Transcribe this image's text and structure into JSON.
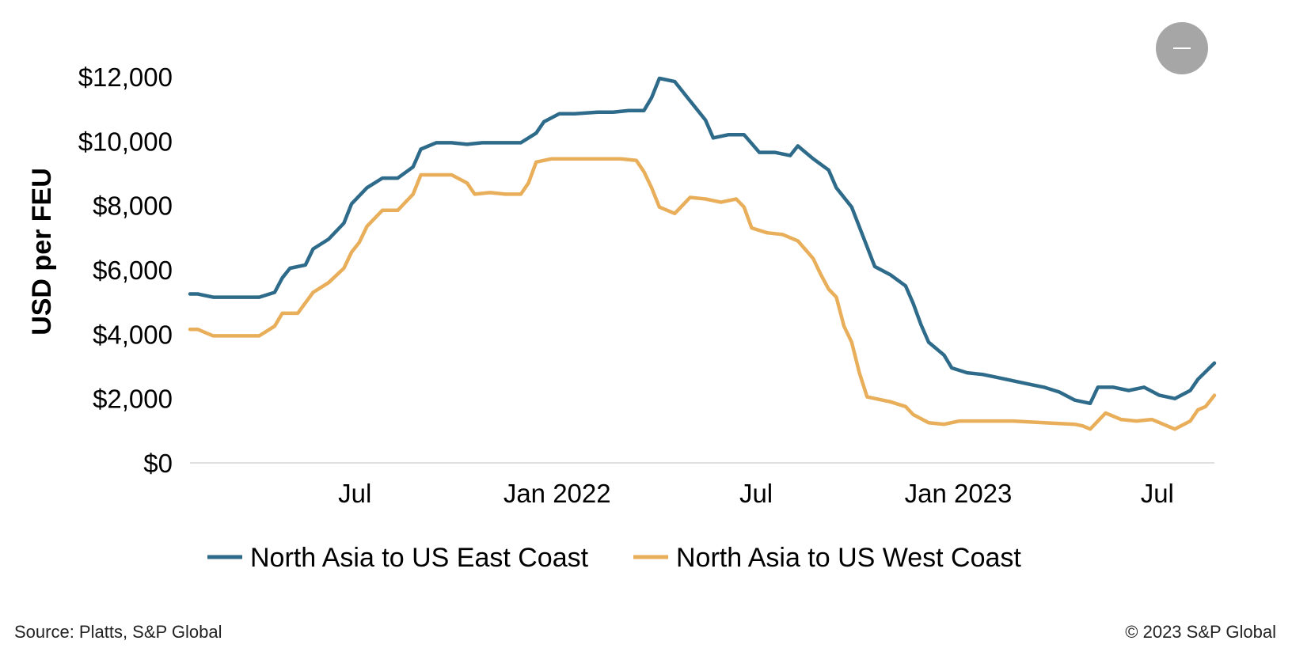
{
  "source_text": "Source: Platts, S&P Global",
  "copyright_text": "© 2023 S&P Global",
  "chart_data": {
    "type": "line",
    "xlabel": "",
    "ylabel": "USD per FEU",
    "ylim": [
      0,
      12000
    ],
    "yticks": [
      {
        "value": 0,
        "label": "$0"
      },
      {
        "value": 2000,
        "label": "$2,000"
      },
      {
        "value": 4000,
        "label": "$4,000"
      },
      {
        "value": 6000,
        "label": "$6,000"
      },
      {
        "value": 8000,
        "label": "$8,000"
      },
      {
        "value": 10000,
        "label": "$10,000"
      },
      {
        "value": 12000,
        "label": "$12,000"
      }
    ],
    "xlim": [
      "2021-02-01",
      "2023-08-22"
    ],
    "xticks": [
      {
        "date": "2021-07-01",
        "label": "Jul"
      },
      {
        "date": "2022-01-01",
        "label": "Jan 2022"
      },
      {
        "date": "2022-07-01",
        "label": "Jul"
      },
      {
        "date": "2023-01-01",
        "label": "Jan 2023"
      },
      {
        "date": "2023-07-01",
        "label": "Jul"
      }
    ],
    "grid": false,
    "legend_position": "bottom",
    "series": [
      {
        "name": "North Asia to US East Coast",
        "color": "#2e6b8a",
        "points": [
          [
            "2021-02-01",
            5250
          ],
          [
            "2021-02-08",
            5250
          ],
          [
            "2021-02-22",
            5150
          ],
          [
            "2021-03-15",
            5150
          ],
          [
            "2021-04-05",
            5150
          ],
          [
            "2021-04-19",
            5300
          ],
          [
            "2021-04-26",
            5750
          ],
          [
            "2021-05-03",
            6050
          ],
          [
            "2021-05-17",
            6150
          ],
          [
            "2021-05-24",
            6650
          ],
          [
            "2021-06-07",
            6950
          ],
          [
            "2021-06-21",
            7450
          ],
          [
            "2021-06-28",
            8050
          ],
          [
            "2021-07-12",
            8550
          ],
          [
            "2021-07-26",
            8850
          ],
          [
            "2021-08-09",
            8850
          ],
          [
            "2021-08-23",
            9200
          ],
          [
            "2021-08-30",
            9750
          ],
          [
            "2021-09-13",
            9950
          ],
          [
            "2021-09-27",
            9950
          ],
          [
            "2021-10-11",
            9900
          ],
          [
            "2021-10-25",
            9950
          ],
          [
            "2021-11-08",
            9950
          ],
          [
            "2021-11-29",
            9950
          ],
          [
            "2021-12-13",
            10250
          ],
          [
            "2021-12-20",
            10600
          ],
          [
            "2022-01-03",
            10850
          ],
          [
            "2022-01-17",
            10850
          ],
          [
            "2022-02-07",
            10900
          ],
          [
            "2022-02-21",
            10900
          ],
          [
            "2022-03-07",
            10950
          ],
          [
            "2022-03-21",
            10950
          ],
          [
            "2022-03-28",
            11350
          ],
          [
            "2022-04-04",
            11950
          ],
          [
            "2022-04-18",
            11850
          ],
          [
            "2022-05-02",
            11250
          ],
          [
            "2022-05-16",
            10650
          ],
          [
            "2022-05-23",
            10100
          ],
          [
            "2022-06-06",
            10200
          ],
          [
            "2022-06-20",
            10200
          ],
          [
            "2022-07-04",
            9650
          ],
          [
            "2022-07-18",
            9650
          ],
          [
            "2022-08-01",
            9550
          ],
          [
            "2022-08-08",
            9850
          ],
          [
            "2022-08-22",
            9450
          ],
          [
            "2022-09-05",
            9100
          ],
          [
            "2022-09-12",
            8550
          ],
          [
            "2022-09-26",
            7950
          ],
          [
            "2022-10-17",
            6100
          ],
          [
            "2022-10-31",
            5850
          ],
          [
            "2022-11-14",
            5500
          ],
          [
            "2022-11-21",
            4950
          ],
          [
            "2022-11-28",
            4300
          ],
          [
            "2022-12-05",
            3750
          ],
          [
            "2022-12-19",
            3350
          ],
          [
            "2022-12-26",
            2950
          ],
          [
            "2023-01-09",
            2800
          ],
          [
            "2023-01-23",
            2750
          ],
          [
            "2023-02-06",
            2650
          ],
          [
            "2023-02-20",
            2550
          ],
          [
            "2023-03-06",
            2450
          ],
          [
            "2023-03-20",
            2350
          ],
          [
            "2023-04-03",
            2200
          ],
          [
            "2023-04-17",
            1950
          ],
          [
            "2023-05-01",
            1850
          ],
          [
            "2023-05-08",
            2350
          ],
          [
            "2023-05-22",
            2350
          ],
          [
            "2023-06-05",
            2250
          ],
          [
            "2023-06-19",
            2350
          ],
          [
            "2023-07-03",
            2100
          ],
          [
            "2023-07-17",
            2000
          ],
          [
            "2023-07-31",
            2250
          ],
          [
            "2023-08-07",
            2600
          ],
          [
            "2023-08-22",
            3100
          ]
        ]
      },
      {
        "name": "North Asia to US West Coast",
        "color": "#e8ae5a",
        "points": [
          [
            "2021-02-01",
            4150
          ],
          [
            "2021-02-08",
            4150
          ],
          [
            "2021-02-22",
            3950
          ],
          [
            "2021-03-15",
            3950
          ],
          [
            "2021-04-05",
            3950
          ],
          [
            "2021-04-19",
            4250
          ],
          [
            "2021-04-26",
            4650
          ],
          [
            "2021-05-10",
            4650
          ],
          [
            "2021-05-24",
            5300
          ],
          [
            "2021-06-07",
            5600
          ],
          [
            "2021-06-21",
            6050
          ],
          [
            "2021-06-28",
            6550
          ],
          [
            "2021-07-05",
            6850
          ],
          [
            "2021-07-12",
            7350
          ],
          [
            "2021-07-26",
            7850
          ],
          [
            "2021-08-09",
            7850
          ],
          [
            "2021-08-23",
            8350
          ],
          [
            "2021-08-30",
            8950
          ],
          [
            "2021-09-13",
            8950
          ],
          [
            "2021-09-27",
            8950
          ],
          [
            "2021-10-11",
            8700
          ],
          [
            "2021-10-18",
            8350
          ],
          [
            "2021-11-01",
            8400
          ],
          [
            "2021-11-15",
            8350
          ],
          [
            "2021-11-29",
            8350
          ],
          [
            "2021-12-06",
            8700
          ],
          [
            "2021-12-13",
            9350
          ],
          [
            "2021-12-27",
            9450
          ],
          [
            "2022-01-17",
            9450
          ],
          [
            "2022-02-07",
            9450
          ],
          [
            "2022-02-28",
            9450
          ],
          [
            "2022-03-14",
            9400
          ],
          [
            "2022-03-21",
            9050
          ],
          [
            "2022-03-28",
            8550
          ],
          [
            "2022-04-04",
            7950
          ],
          [
            "2022-04-18",
            7750
          ],
          [
            "2022-05-02",
            8250
          ],
          [
            "2022-05-16",
            8200
          ],
          [
            "2022-05-30",
            8100
          ],
          [
            "2022-06-13",
            8200
          ],
          [
            "2022-06-20",
            7950
          ],
          [
            "2022-06-27",
            7300
          ],
          [
            "2022-07-11",
            7150
          ],
          [
            "2022-07-25",
            7100
          ],
          [
            "2022-08-08",
            6900
          ],
          [
            "2022-08-22",
            6350
          ],
          [
            "2022-08-29",
            5850
          ],
          [
            "2022-09-05",
            5400
          ],
          [
            "2022-09-12",
            5150
          ],
          [
            "2022-09-19",
            4250
          ],
          [
            "2022-09-26",
            3750
          ],
          [
            "2022-10-03",
            2800
          ],
          [
            "2022-10-10",
            2050
          ],
          [
            "2022-10-31",
            1900
          ],
          [
            "2022-11-14",
            1750
          ],
          [
            "2022-11-21",
            1500
          ],
          [
            "2022-12-05",
            1250
          ],
          [
            "2022-12-19",
            1200
          ],
          [
            "2023-01-02",
            1300
          ],
          [
            "2023-01-23",
            1300
          ],
          [
            "2023-02-20",
            1300
          ],
          [
            "2023-03-20",
            1250
          ],
          [
            "2023-04-17",
            1200
          ],
          [
            "2023-04-24",
            1150
          ],
          [
            "2023-05-01",
            1050
          ],
          [
            "2023-05-15",
            1550
          ],
          [
            "2023-05-29",
            1350
          ],
          [
            "2023-06-12",
            1300
          ],
          [
            "2023-06-26",
            1350
          ],
          [
            "2023-07-17",
            1050
          ],
          [
            "2023-07-31",
            1300
          ],
          [
            "2023-08-07",
            1650
          ],
          [
            "2023-08-14",
            1750
          ],
          [
            "2023-08-22",
            2100
          ]
        ]
      }
    ]
  }
}
